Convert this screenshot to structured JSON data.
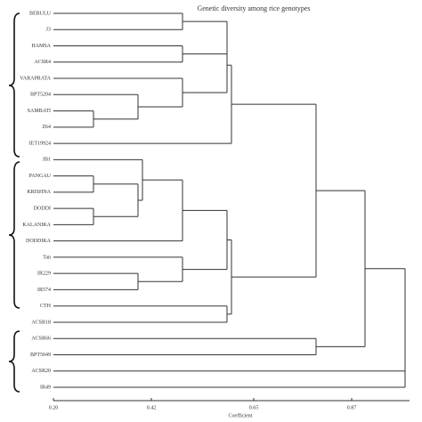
{
  "chart_data": {
    "type": "dendrogram",
    "title": "Genetic diversity among rice genotypes",
    "xlabel": "Coefficient",
    "leaves": [
      "BERULU",
      "J3",
      "HAMSA",
      "ACSR4",
      "VARAPRATA",
      "BPT5204",
      "SAMBATI",
      "Z64",
      "IET19924",
      "JB1",
      "PANGAU",
      "KRISHNA",
      "DODDI",
      "KALANIKA",
      "DODDIKA",
      "Tan",
      "IR229",
      "IR574",
      "CTH",
      "ACSR18",
      "ACSR66",
      "BPT5049",
      "ACSR20",
      "IR49"
    ],
    "merges": [
      {
        "children": [
          0,
          1
        ],
        "height": 0.49
      },
      {
        "children": [
          2,
          3
        ],
        "height": 0.49
      },
      {
        "children": [
          24,
          25
        ],
        "height": 0.59
      },
      {
        "children": [
          6,
          7
        ],
        "height": 0.29
      },
      {
        "children": [
          5,
          27
        ],
        "height": 0.39
      },
      {
        "children": [
          4,
          28
        ],
        "height": 0.49
      },
      {
        "children": [
          26,
          29
        ],
        "height": 0.59
      },
      {
        "children": [
          30,
          8
        ],
        "height": 0.6
      },
      {
        "children": [
          10,
          11
        ],
        "height": 0.29
      },
      {
        "children": [
          12,
          13
        ],
        "height": 0.29
      },
      {
        "children": [
          32,
          33
        ],
        "height": 0.39
      },
      {
        "children": [
          9,
          34
        ],
        "height": 0.4
      },
      {
        "children": [
          35,
          14
        ],
        "height": 0.49
      },
      {
        "children": [
          16,
          17
        ],
        "height": 0.39
      },
      {
        "children": [
          15,
          37
        ],
        "height": 0.49
      },
      {
        "children": [
          36,
          38
        ],
        "height": 0.59
      },
      {
        "children": [
          18,
          19
        ],
        "height": 0.59
      },
      {
        "children": [
          39,
          40
        ],
        "height": 0.6
      },
      {
        "children": [
          31,
          41
        ],
        "height": 0.79
      },
      {
        "children": [
          20,
          21
        ],
        "height": 0.79
      },
      {
        "children": [
          42,
          43
        ],
        "height": 0.9
      },
      {
        "children": [
          44,
          22,
          23
        ],
        "height": 0.99
      }
    ],
    "xlim": [
      0.2,
      1.0
    ],
    "xticks": [
      {
        "value": 0.2,
        "label": "0.20"
      },
      {
        "value": 0.42,
        "label": "0.42"
      },
      {
        "value": 0.65,
        "label": "0.65"
      },
      {
        "value": 0.87,
        "label": "0.87"
      }
    ],
    "color": "#333333"
  }
}
